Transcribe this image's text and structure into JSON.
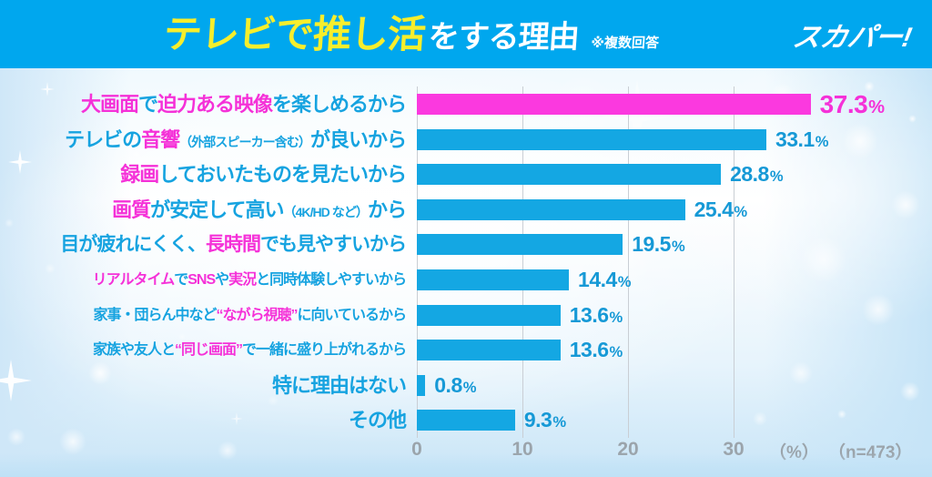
{
  "header": {
    "title_highlight": "テレビで推し活",
    "title_rest": "をする理由",
    "note": "※複数回答",
    "logo": "スカパー!"
  },
  "axis": {
    "unit_label": "（%）",
    "sample_label": "（n=473）"
  },
  "colors": {
    "header_bg": "#00a7ee",
    "title_yellow": "#f7ee2c",
    "bar_blue": "#14a7e3",
    "bar_pink": "#fb39df",
    "label_blue": "#16a3e0",
    "label_pink": "#f531d8",
    "axis_gray": "#9ba4ab"
  },
  "chart_data": {
    "type": "bar",
    "orientation": "horizontal",
    "title": "テレビで推し活をする理由",
    "subtitle": "※複数回答",
    "categories": [
      "大画面で迫力ある映像を楽しめるから",
      "テレビの音響（外部スピーカー含む）が良いから",
      "録画しておいたものを見たいから",
      "画質が安定して高い（4K/HDなど）から",
      "目が疲れにくく、長時間でも見やすいから",
      "リアルタイムでSNSや実況と同時体験しやすいから",
      "家事・団らん中など“ながら視聴”に向いているから",
      "家族や友人と“同じ画面”で一緒に盛り上がれるから",
      "特に理由はない",
      "その他"
    ],
    "values": [
      37.3,
      33.1,
      28.8,
      25.4,
      19.5,
      14.4,
      13.6,
      13.6,
      0.8,
      9.3
    ],
    "value_labels": [
      "37.3%",
      "33.1%",
      "28.8%",
      "25.4%",
      "19.5%",
      "14.4%",
      "13.6%",
      "13.6%",
      "0.8%",
      "9.3%"
    ],
    "highlight_index": 0,
    "x_ticks": [
      0,
      10,
      20,
      30
    ],
    "xlim": [
      0,
      40
    ],
    "xlabel": "（%）",
    "sample_size": "（n=473）",
    "grid": true,
    "legend": false
  },
  "rows": [
    {
      "label_parts": [
        {
          "t": "大画面",
          "c": "pink"
        },
        {
          "t": "で",
          "c": "blue"
        },
        {
          "t": "迫力ある映像",
          "c": "pink"
        },
        {
          "t": "を楽しめるから",
          "c": "blue"
        }
      ],
      "value": 37.3,
      "label": "37.3%",
      "color": "pink"
    },
    {
      "label_parts": [
        {
          "t": "テレビの",
          "c": "blue"
        },
        {
          "t": "音響",
          "c": "pink"
        },
        {
          "t": "（外部スピーカー含む）",
          "c": "blue-small"
        },
        {
          "t": "が良いから",
          "c": "blue"
        }
      ],
      "value": 33.1,
      "label": "33.1%",
      "color": "blue"
    },
    {
      "label_parts": [
        {
          "t": "録画",
          "c": "pink"
        },
        {
          "t": "しておいたものを見たいから",
          "c": "blue"
        }
      ],
      "value": 28.8,
      "label": "28.8%",
      "color": "blue"
    },
    {
      "label_parts": [
        {
          "t": "画質",
          "c": "pink"
        },
        {
          "t": "が安定して高い",
          "c": "blue"
        },
        {
          "t": "（4K/HD など）",
          "c": "blue-small"
        },
        {
          "t": "から",
          "c": "blue"
        }
      ],
      "value": 25.4,
      "label": "25.4%",
      "color": "blue"
    },
    {
      "label_parts": [
        {
          "t": "目が疲れにくく、",
          "c": "blue"
        },
        {
          "t": "長時間",
          "c": "pink"
        },
        {
          "t": "でも見やすいから",
          "c": "blue"
        }
      ],
      "value": 19.5,
      "label": "19.5%",
      "color": "blue"
    },
    {
      "label_parts": [
        {
          "t": "リアルタイム",
          "c": "pink"
        },
        {
          "t": "で",
          "c": "blue"
        },
        {
          "t": "SNS",
          "c": "pink"
        },
        {
          "t": "や",
          "c": "blue"
        },
        {
          "t": "実況",
          "c": "pink"
        },
        {
          "t": "と同時体験しやすいから",
          "c": "blue"
        }
      ],
      "value": 14.4,
      "label": "14.4%",
      "color": "blue"
    },
    {
      "label_parts": [
        {
          "t": "家事・団らん中など",
          "c": "blue"
        },
        {
          "t": "“ながら視聴”",
          "c": "pink"
        },
        {
          "t": "に向いているから",
          "c": "blue"
        }
      ],
      "value": 13.6,
      "label": "13.6%",
      "color": "blue"
    },
    {
      "label_parts": [
        {
          "t": "家族や友人と",
          "c": "blue"
        },
        {
          "t": "“同じ画面”",
          "c": "pink"
        },
        {
          "t": "で一緒に盛り上がれるから",
          "c": "blue"
        }
      ],
      "value": 13.6,
      "label": "13.6%",
      "color": "blue"
    },
    {
      "label_parts": [
        {
          "t": "特に理由はない",
          "c": "blue"
        }
      ],
      "value": 0.8,
      "label": "0.8%",
      "color": "blue"
    },
    {
      "label_parts": [
        {
          "t": "その他",
          "c": "blue"
        }
      ],
      "value": 9.3,
      "label": "9.3%",
      "color": "blue"
    }
  ]
}
